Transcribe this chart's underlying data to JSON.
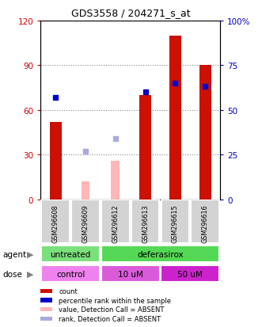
{
  "title": "GDS3558 / 204271_s_at",
  "samples": [
    "GSM296608",
    "GSM296609",
    "GSM296612",
    "GSM296613",
    "GSM296615",
    "GSM296616"
  ],
  "red_bars": [
    52,
    0,
    0,
    70,
    110,
    90
  ],
  "pink_bars": [
    0,
    12,
    26,
    0,
    0,
    0
  ],
  "blue_squares": [
    57,
    0,
    0,
    60,
    65,
    63
  ],
  "light_blue_squares": [
    0,
    27,
    34,
    0,
    0,
    0
  ],
  "ylim_left": [
    0,
    120
  ],
  "ylim_right": [
    0,
    100
  ],
  "yticks_left": [
    0,
    30,
    60,
    90,
    120
  ],
  "ytick_labels_left": [
    "0",
    "30",
    "60",
    "90",
    "120"
  ],
  "yticks_right": [
    0,
    25,
    50,
    75,
    100
  ],
  "ytick_labels_right": [
    "0",
    "25",
    "50",
    "75",
    "100%"
  ],
  "agent_groups": [
    {
      "label": "untreated",
      "span": [
        0,
        2
      ],
      "color": "#7be07b"
    },
    {
      "label": "deferasirox",
      "span": [
        2,
        6
      ],
      "color": "#55d855"
    }
  ],
  "dose_groups": [
    {
      "label": "control",
      "span": [
        0,
        2
      ],
      "color": "#ee82ee"
    },
    {
      "label": "10 uM",
      "span": [
        2,
        4
      ],
      "color": "#da5ada"
    },
    {
      "label": "50 uM",
      "span": [
        4,
        6
      ],
      "color": "#cc22cc"
    }
  ],
  "legend_items": [
    {
      "label": "count",
      "color": "#cc1100"
    },
    {
      "label": "percentile rank within the sample",
      "color": "#0000cc"
    },
    {
      "label": "value, Detection Call = ABSENT",
      "color": "#ffb6b6"
    },
    {
      "label": "rank, Detection Call = ABSENT",
      "color": "#aaaadd"
    }
  ],
  "red_bar_color": "#cc1100",
  "pink_bar_color": "#ffb6b6",
  "blue_sq_color": "#0000cc",
  "light_blue_sq_color": "#aaaadd",
  "bg_color": "#ffffff",
  "grid_color": "#888888",
  "left_tick_color": "#cc0000",
  "right_tick_color": "#0000cc",
  "sample_bg_color": "#d3d3d3"
}
